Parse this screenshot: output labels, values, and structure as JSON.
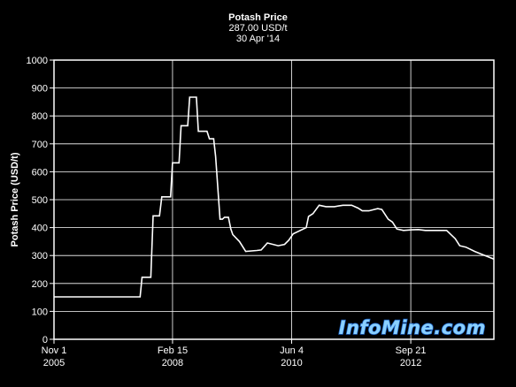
{
  "chart_data": {
    "type": "line",
    "title": "Potash Price",
    "subtitle_price": "287.00 USD/t",
    "subtitle_date": "30 Apr '14",
    "ylabel": "Potash Price (USD/t)",
    "xlabel": "",
    "ylim": [
      0,
      1000
    ],
    "yticks": [
      "0",
      "100",
      "200",
      "300",
      "400",
      "500",
      "600",
      "700",
      "800",
      "900",
      "1000"
    ],
    "xticks": [
      {
        "date": "2005-11-01",
        "line1": "Nov 1",
        "line2": "2005"
      },
      {
        "date": "2008-02-15",
        "line1": "Feb 15",
        "line2": "2008"
      },
      {
        "date": "2010-06-04",
        "line1": "Jun 4",
        "line2": "2010"
      },
      {
        "date": "2012-09-21",
        "line1": "Sep 21",
        "line2": "2012"
      }
    ],
    "xlim": [
      "2005-11-01",
      "2014-04-30"
    ],
    "grid": true,
    "line_color": "#ffffff",
    "watermark": "InfoMine.com",
    "series": [
      {
        "x": [
          "2005-11-01",
          "2007-07-01",
          "2007-07-15",
          "2007-09-15",
          "2007-10-01",
          "2007-11-15",
          "2007-12-01",
          "2008-02-01",
          "2008-02-15",
          "2008-04-01",
          "2008-04-15",
          "2008-06-01",
          "2008-06-15",
          "2008-08-01",
          "2008-08-15",
          "2008-10-15",
          "2008-11-01",
          "2008-12-01",
          "2008-12-15",
          "2009-01-15",
          "2009-02-01",
          "2009-02-15",
          "2009-03-15",
          "2009-04-01",
          "2009-04-15",
          "2009-06-01",
          "2009-07-15",
          "2009-10-01",
          "2009-11-01",
          "2009-12-15",
          "2010-03-01",
          "2010-04-15",
          "2010-05-15",
          "2010-06-15",
          "2010-09-15",
          "2010-10-01",
          "2010-11-01",
          "2010-12-15",
          "2011-02-01",
          "2011-04-01",
          "2011-06-01",
          "2011-08-01",
          "2011-09-15",
          "2011-10-15",
          "2011-12-01",
          "2012-02-01",
          "2012-03-01",
          "2012-04-15",
          "2012-05-15",
          "2012-06-15",
          "2012-08-01",
          "2012-10-01",
          "2012-11-15",
          "2013-01-01",
          "2013-03-01",
          "2013-06-01",
          "2013-08-01",
          "2013-09-01",
          "2013-10-15",
          "2013-12-15",
          "2014-02-01",
          "2014-04-30"
        ],
        "y": [
          152,
          152,
          222,
          222,
          442,
          442,
          510,
          510,
          632,
          632,
          765,
          765,
          867,
          867,
          745,
          745,
          718,
          718,
          655,
          430,
          430,
          437,
          437,
          395,
          375,
          350,
          315,
          318,
          320,
          345,
          335,
          340,
          355,
          378,
          400,
          440,
          450,
          480,
          475,
          475,
          480,
          480,
          470,
          460,
          460,
          468,
          465,
          430,
          420,
          395,
          390,
          392,
          393,
          390,
          390,
          390,
          360,
          335,
          330,
          315,
          305,
          287
        ]
      }
    ]
  }
}
